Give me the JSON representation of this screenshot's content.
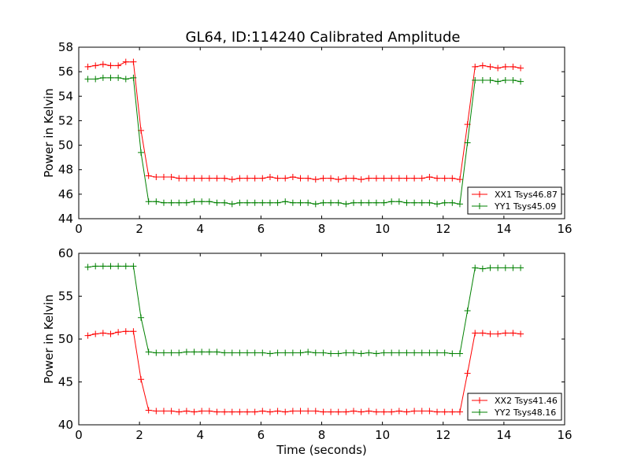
{
  "title": "GL64, ID:114240 Calibrated Amplitude",
  "chart_data": [
    {
      "type": "line",
      "ylabel": "Power in Kelvin",
      "xlabel": "",
      "xlim": [
        0,
        16
      ],
      "ylim": [
        44,
        58
      ],
      "xticks": [
        0,
        2,
        4,
        6,
        8,
        10,
        12,
        14,
        16
      ],
      "yticks": [
        44,
        46,
        48,
        50,
        52,
        54,
        56,
        58
      ],
      "x": [
        0.3,
        0.55,
        0.8,
        1.05,
        1.3,
        1.55,
        1.8,
        2.05,
        2.3,
        2.55,
        2.8,
        3.05,
        3.3,
        3.55,
        3.8,
        4.05,
        4.3,
        4.55,
        4.8,
        5.05,
        5.3,
        5.55,
        5.8,
        6.05,
        6.3,
        6.55,
        6.8,
        7.05,
        7.3,
        7.55,
        7.8,
        8.05,
        8.3,
        8.55,
        8.8,
        9.05,
        9.3,
        9.55,
        9.8,
        10.05,
        10.3,
        10.55,
        10.8,
        11.05,
        11.3,
        11.55,
        11.8,
        12.05,
        12.3,
        12.55,
        12.8,
        13.05,
        13.3,
        13.55,
        13.8,
        14.05,
        14.3,
        14.55
      ],
      "series": [
        {
          "name": "XX1 Tsys46.87",
          "color": "#ff0000",
          "values": [
            56.4,
            56.5,
            56.6,
            56.5,
            56.5,
            56.8,
            56.8,
            51.2,
            47.5,
            47.4,
            47.4,
            47.4,
            47.3,
            47.3,
            47.3,
            47.3,
            47.3,
            47.3,
            47.3,
            47.2,
            47.3,
            47.3,
            47.3,
            47.3,
            47.4,
            47.3,
            47.3,
            47.4,
            47.3,
            47.3,
            47.2,
            47.3,
            47.3,
            47.2,
            47.3,
            47.3,
            47.2,
            47.3,
            47.3,
            47.3,
            47.3,
            47.3,
            47.3,
            47.3,
            47.3,
            47.4,
            47.3,
            47.3,
            47.3,
            47.2,
            51.7,
            56.4,
            56.5,
            56.4,
            56.3,
            56.4,
            56.4,
            56.3
          ]
        },
        {
          "name": "YY1 Tsys45.09",
          "color": "#008000",
          "values": [
            55.4,
            55.4,
            55.5,
            55.5,
            55.5,
            55.4,
            55.5,
            49.4,
            45.4,
            45.4,
            45.3,
            45.3,
            45.3,
            45.3,
            45.4,
            45.4,
            45.4,
            45.3,
            45.3,
            45.2,
            45.3,
            45.3,
            45.3,
            45.3,
            45.3,
            45.3,
            45.4,
            45.3,
            45.3,
            45.3,
            45.2,
            45.3,
            45.3,
            45.3,
            45.2,
            45.3,
            45.3,
            45.3,
            45.3,
            45.3,
            45.4,
            45.4,
            45.3,
            45.3,
            45.3,
            45.3,
            45.2,
            45.3,
            45.3,
            45.2,
            50.2,
            55.3,
            55.3,
            55.3,
            55.2,
            55.3,
            55.3,
            55.2
          ]
        }
      ],
      "legend": "lower-right"
    },
    {
      "type": "line",
      "ylabel": "Power in Kelvin",
      "xlabel": "Time (seconds)",
      "xlim": [
        0,
        16
      ],
      "ylim": [
        40,
        60
      ],
      "xticks": [
        0,
        2,
        4,
        6,
        8,
        10,
        12,
        14,
        16
      ],
      "yticks": [
        40,
        45,
        50,
        55,
        60
      ],
      "x": [
        0.3,
        0.55,
        0.8,
        1.05,
        1.3,
        1.55,
        1.8,
        2.05,
        2.3,
        2.55,
        2.8,
        3.05,
        3.3,
        3.55,
        3.8,
        4.05,
        4.3,
        4.55,
        4.8,
        5.05,
        5.3,
        5.55,
        5.8,
        6.05,
        6.3,
        6.55,
        6.8,
        7.05,
        7.3,
        7.55,
        7.8,
        8.05,
        8.3,
        8.55,
        8.8,
        9.05,
        9.3,
        9.55,
        9.8,
        10.05,
        10.3,
        10.55,
        10.8,
        11.05,
        11.3,
        11.55,
        11.8,
        12.05,
        12.3,
        12.55,
        12.8,
        13.05,
        13.3,
        13.55,
        13.8,
        14.05,
        14.3,
        14.55
      ],
      "series": [
        {
          "name": "XX2 Tsys41.46",
          "color": "#ff0000",
          "values": [
            50.4,
            50.6,
            50.7,
            50.6,
            50.8,
            50.9,
            50.9,
            45.3,
            41.7,
            41.6,
            41.6,
            41.6,
            41.5,
            41.6,
            41.5,
            41.6,
            41.6,
            41.5,
            41.5,
            41.5,
            41.5,
            41.5,
            41.5,
            41.6,
            41.5,
            41.6,
            41.5,
            41.6,
            41.6,
            41.6,
            41.6,
            41.5,
            41.5,
            41.5,
            41.5,
            41.6,
            41.5,
            41.6,
            41.5,
            41.5,
            41.5,
            41.6,
            41.5,
            41.6,
            41.6,
            41.6,
            41.5,
            41.5,
            41.5,
            41.5,
            46.0,
            50.7,
            50.7,
            50.6,
            50.6,
            50.7,
            50.7,
            50.6
          ]
        },
        {
          "name": "YY2 Tsys48.16",
          "color": "#008000",
          "values": [
            58.4,
            58.5,
            58.5,
            58.5,
            58.5,
            58.5,
            58.5,
            52.5,
            48.5,
            48.4,
            48.4,
            48.4,
            48.4,
            48.5,
            48.5,
            48.5,
            48.5,
            48.5,
            48.4,
            48.4,
            48.4,
            48.4,
            48.4,
            48.4,
            48.3,
            48.4,
            48.4,
            48.4,
            48.4,
            48.5,
            48.4,
            48.4,
            48.3,
            48.3,
            48.4,
            48.4,
            48.3,
            48.4,
            48.3,
            48.4,
            48.4,
            48.4,
            48.4,
            48.4,
            48.4,
            48.4,
            48.4,
            48.4,
            48.3,
            48.3,
            53.3,
            58.3,
            58.2,
            58.3,
            58.3,
            58.3,
            58.3,
            58.3
          ]
        }
      ],
      "legend": "lower-right"
    }
  ]
}
